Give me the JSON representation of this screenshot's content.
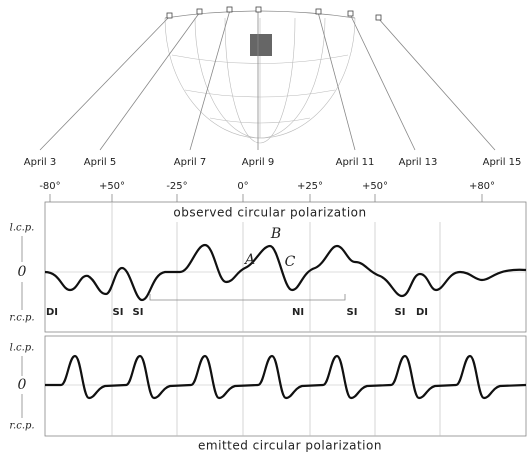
{
  "dates": [
    "April 3",
    "April 5",
    "April 7",
    "April 9",
    "April 11",
    "April 13",
    "April 15"
  ],
  "longitudes": [
    "-80°",
    "+50°",
    "-25°",
    "0°",
    "+25°",
    "+50°",
    "+80°"
  ],
  "panels": [
    {
      "title": "observed circular polarization",
      "lcp": "l.c.p.",
      "zero": "0",
      "rcp": "r.c.p."
    },
    {
      "title": "emitted circular polarization",
      "lcp": "l.c.p.",
      "zero": "0",
      "rcp": "r.c.p."
    }
  ],
  "peak_labels": [
    "A",
    "B",
    "C"
  ],
  "annotations": [
    "DI",
    "SI",
    "SI",
    "NI",
    "SI",
    "SI",
    "DI"
  ]
}
